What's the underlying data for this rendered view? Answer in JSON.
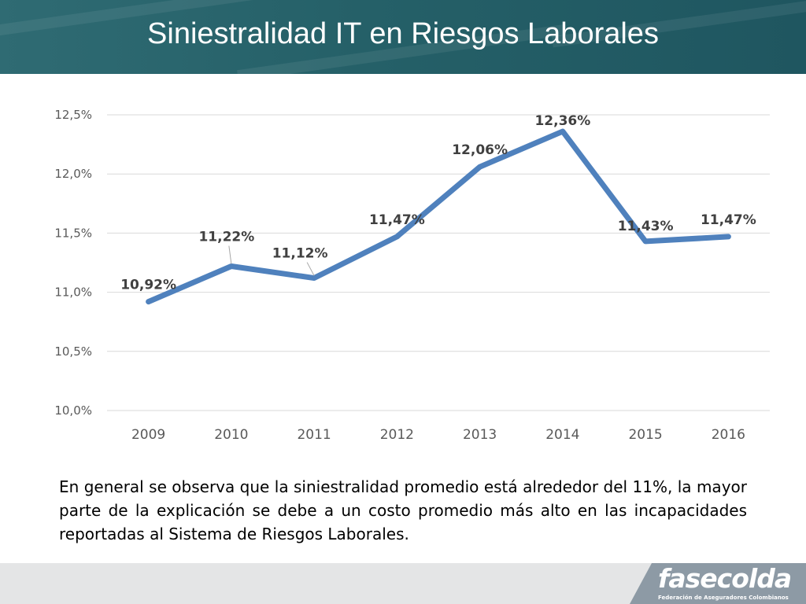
{
  "slide": {
    "title": "Siniestralidad IT en Riesgos Laborales",
    "body_text": "En general se observa que la siniestralidad promedio está alrededor del 11%, la mayor parte de la explicación se debe a un costo promedio más alto en las incapacidades reportadas al Sistema de Riesgos Laborales."
  },
  "logo": {
    "name": "fasecolda",
    "tagline": "Federación de Aseguradores Colombianos"
  },
  "colors": {
    "header": "#256068",
    "line": "#4f81bd",
    "gridline": "#d9d9d9",
    "footer": "#e4e5e6",
    "logo_panel": "#8d9aa5"
  },
  "chart_data": {
    "type": "line",
    "categories": [
      "2009",
      "2010",
      "2011",
      "2012",
      "2013",
      "2014",
      "2015",
      "2016"
    ],
    "series": [
      {
        "values": [
          10.92,
          11.22,
          11.12,
          11.47,
          12.06,
          12.36,
          11.43,
          11.47
        ],
        "labels": [
          "10,92%",
          "11,22%",
          "11,12%",
          "11,47%",
          "12,06%",
          "12,36%",
          "11,43%",
          "11,47%"
        ]
      }
    ],
    "yticks": [
      10.0,
      10.5,
      11.0,
      11.5,
      12.0,
      12.5
    ],
    "ytick_labels": [
      "10,0%",
      "10,5%",
      "11,0%",
      "11,5%",
      "12,0%",
      "12,5%"
    ],
    "ylim": [
      10.0,
      12.5
    ],
    "grid": true,
    "legend": "none"
  }
}
